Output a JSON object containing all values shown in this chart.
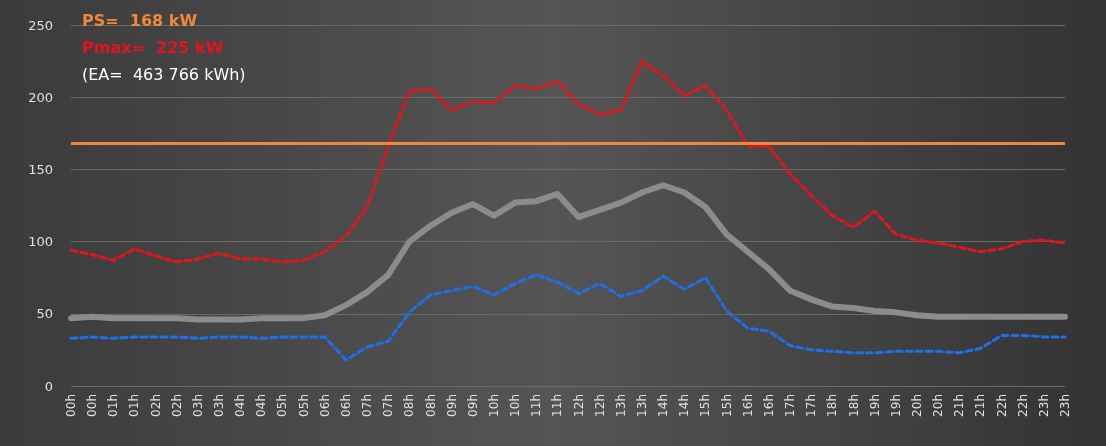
{
  "chart_data": {
    "type": "line",
    "categories": [
      "00h",
      "00h",
      "01h",
      "01h",
      "02h",
      "02h",
      "03h",
      "03h",
      "04h",
      "04h",
      "05h",
      "05h",
      "06h",
      "06h",
      "07h",
      "07h",
      "08h",
      "08h",
      "09h",
      "09h",
      "10h",
      "10h",
      "11h",
      "11h",
      "12h",
      "12h",
      "13h",
      "13h",
      "14h",
      "14h",
      "15h",
      "15h",
      "16h",
      "16h",
      "17h",
      "17h",
      "18h",
      "18h",
      "19h",
      "19h",
      "20h",
      "20h",
      "21h",
      "21h",
      "22h",
      "22h",
      "23h",
      "23h"
    ],
    "series": [
      {
        "color": "#e3141e",
        "line_style": "dashed",
        "values": [
          94,
          91,
          87,
          95,
          90,
          86,
          88,
          92,
          88,
          88,
          86,
          87,
          93,
          104,
          124,
          166,
          204,
          206,
          191,
          197,
          196,
          208,
          206,
          211,
          195,
          188,
          191,
          225,
          215,
          201,
          208,
          191,
          166,
          166,
          147,
          132,
          118,
          110,
          121,
          105,
          101,
          99,
          96,
          93,
          95,
          100,
          101,
          99
        ]
      },
      {
        "color": "#8c8c8c",
        "line_style": "solid",
        "values": [
          47,
          48,
          47,
          47,
          47,
          47,
          46,
          46,
          46,
          47,
          47,
          47,
          49,
          56,
          65,
          77,
          100,
          111,
          120,
          126,
          118,
          127,
          128,
          133,
          117,
          122,
          127,
          134,
          139,
          134,
          124,
          105,
          93,
          81,
          66,
          60,
          55,
          54,
          52,
          51,
          49,
          48,
          48,
          48,
          48,
          48,
          48,
          48
        ]
      },
      {
        "color": "#1f6fe6",
        "line_style": "dashed",
        "values": [
          33,
          34,
          33,
          34,
          34,
          34,
          33,
          34,
          34,
          33,
          34,
          34,
          34,
          18,
          27,
          31,
          51,
          63,
          66,
          69,
          63,
          71,
          77,
          72,
          64,
          71,
          62,
          66,
          76,
          67,
          75,
          52,
          40,
          38,
          28,
          25,
          24,
          23,
          23,
          24,
          24,
          24,
          23,
          26,
          35,
          35,
          34,
          34
        ]
      }
    ],
    "ylim": [
      0,
      250
    ],
    "yticks": [
      0,
      50,
      100,
      150,
      200,
      250
    ],
    "grid": "y",
    "marker": "none",
    "ref_lines": [
      {
        "axis": "y",
        "value": 168,
        "color": "#f0883a"
      }
    ],
    "annotations": [
      "PS=  168 kW",
      "Pmax=  225 kW",
      "(EA=  463 766 kWh)"
    ]
  }
}
